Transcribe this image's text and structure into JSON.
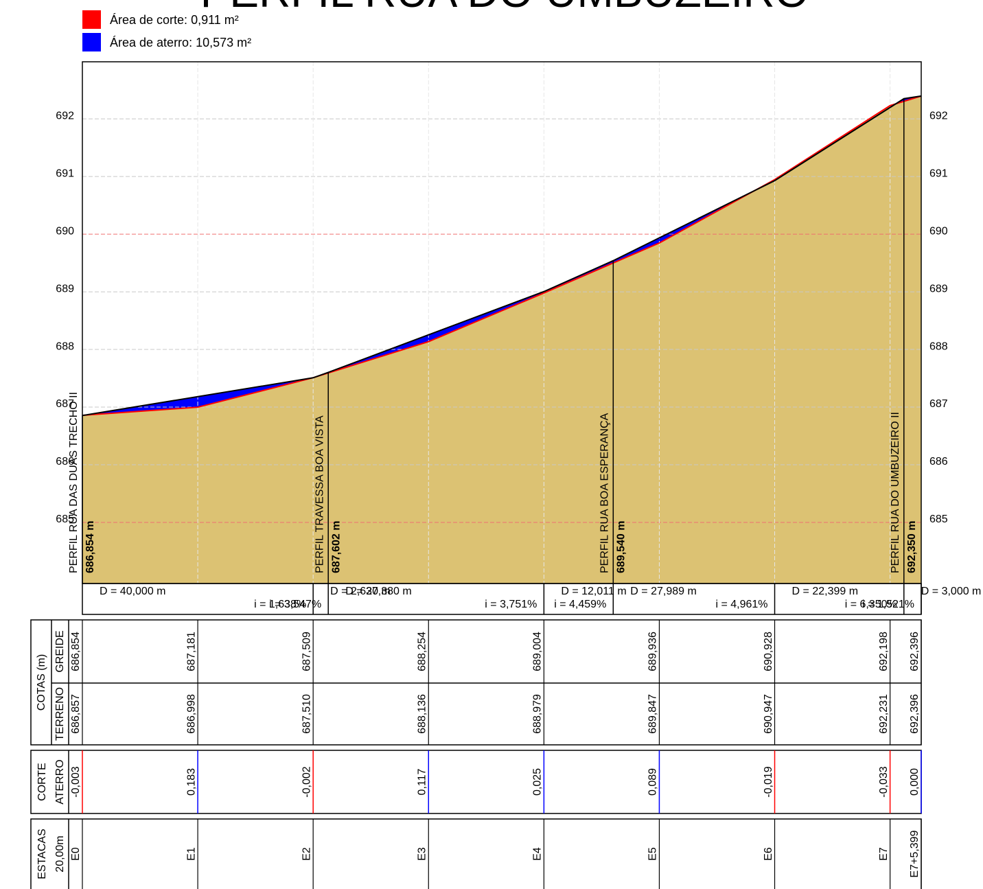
{
  "chart_data": {
    "type": "profile",
    "title": "PERFIL RUA DO UMBUZEIRO",
    "legend": [
      {
        "label": "Área de corte: 0,911 m²",
        "color": "#ff0000"
      },
      {
        "label": "Área de aterro: 10,573 m²",
        "color": "#0000ff"
      }
    ],
    "xlim": [
      0,
      145.399
    ],
    "ylim": [
      683.94,
      692.99
    ],
    "yticks": [
      685,
      686,
      687,
      688,
      689,
      690,
      691,
      692
    ],
    "grid": true,
    "grid_color": "#c8c8c8",
    "major_grid": [
      685,
      690
    ],
    "major_grid_color": "#f07070",
    "stations": {
      "x": [
        0,
        20,
        40,
        60,
        80,
        100,
        120,
        140,
        145.399
      ],
      "labels": [
        "E0",
        "E1",
        "E2",
        "E3",
        "E4",
        "E5",
        "E6",
        "E7",
        "E7+5,399"
      ]
    },
    "series": [
      {
        "name": "TERRENO",
        "color": "#ff0000",
        "fill": "#dcc273",
        "x": [
          0,
          20,
          40,
          60,
          80,
          100,
          120,
          140,
          145.399
        ],
        "values": [
          686.857,
          686.998,
          687.51,
          688.136,
          688.979,
          689.847,
          690.947,
          692.231,
          692.396
        ],
        "value_labels": [
          "686,857",
          "686,998",
          "687,510",
          "688,136",
          "688,979",
          "689,847",
          "690,947",
          "692,231",
          "692,396"
        ]
      },
      {
        "name": "GREIDE",
        "color": "#000000",
        "fill": "#0000ff",
        "x": [
          0,
          40,
          42.62,
          80,
          92.011,
          120,
          142.399,
          145.399
        ],
        "values": [
          686.854,
          687.509,
          687.602,
          689.004,
          689.54,
          690.928,
          692.35,
          692.396
        ]
      }
    ],
    "greide_at_stations": {
      "values": [
        686.854,
        687.181,
        687.509,
        688.254,
        689.004,
        689.936,
        690.928,
        692.198,
        692.396
      ],
      "value_labels": [
        "686,854",
        "687,181",
        "687,509",
        "688,254",
        "689,004",
        "689,936",
        "690,928",
        "692,198",
        "692,396"
      ]
    },
    "crossings": [
      {
        "label": "PERFIL RUA DAS DUAS TRECHO II",
        "x": 0,
        "value": 686.854,
        "value_label": "686,854 m"
      },
      {
        "label": "PERFIL TRAVESSA BOA VISTA",
        "x": 42.62,
        "value": 687.602,
        "value_label": "687,602 m"
      },
      {
        "label": "PERFIL RUA BOA ESPERANÇA",
        "x": 92.011,
        "value": 689.54,
        "value_label": "689,540 m"
      },
      {
        "label": "PERFIL RUA DO UMBUZEIRO II",
        "x": 142.399,
        "value": 692.35,
        "value_label": "692,350 m"
      }
    ],
    "segments": [
      {
        "d": "D = 40,000 m",
        "i": "i = 1,638%"
      },
      {
        "d": "D = 2,620 m",
        "i": "i = 3,547%"
      },
      {
        "d": "D = 37,380 m",
        "i": "i = 3,751%"
      },
      {
        "d": "D = 12,011 m",
        "i": "i = 4,459%"
      },
      {
        "d": "D = 27,989 m",
        "i": "i = 4,961%"
      },
      {
        "d": "D = 22,399 m",
        "i": "i = 6,350%"
      },
      {
        "d": "D = 3,000 m",
        "i": "i = 1,521%"
      }
    ],
    "table": {
      "cotas_label": "COTAS (m)",
      "cut_label": "CORTE",
      "fill_label": "ATERRO",
      "cut_fill": {
        "values": [
          -0.003,
          0.183,
          -0.002,
          0.117,
          0.025,
          0.089,
          -0.019,
          -0.033,
          0.0
        ],
        "value_labels": [
          "-0,003",
          "0,183",
          "-0,002",
          "0,117",
          "0,025",
          "0,089",
          "-0,019",
          "-0,033",
          "0,000"
        ]
      },
      "stations_label": "ESTACAS",
      "spacing_label": "20,00m"
    }
  }
}
